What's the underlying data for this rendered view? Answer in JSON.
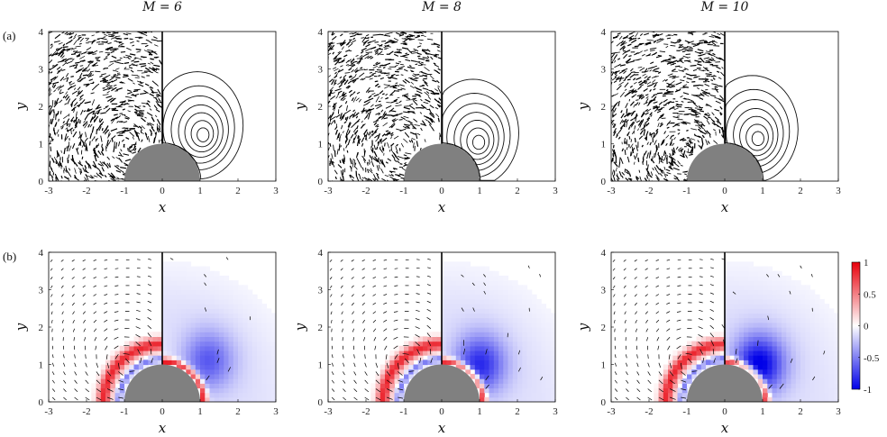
{
  "chart_data": [
    {
      "type": "streamline-contour",
      "panel_label": "(a)",
      "title": "M = 6",
      "xlabel": "x",
      "ylabel": "y",
      "xlim": [
        -3,
        3
      ],
      "ylim": [
        0,
        4
      ],
      "x_ticks": [
        "-3",
        "-2",
        "-1",
        "0",
        "1",
        "2",
        "3"
      ],
      "y_ticks": [
        "0",
        "1",
        "2",
        "3",
        "4"
      ],
      "obstacle": {
        "shape": "half-disk",
        "center": [
          0,
          0
        ],
        "radius": 1,
        "color": "#808080"
      },
      "vortex_center_left": [
        -0.9,
        1.0
      ],
      "vortex_center_right": [
        1.1,
        1.2
      ]
    },
    {
      "type": "streamline-contour",
      "panel_label": "",
      "title": "M = 8",
      "xlabel": "x",
      "ylabel": "y",
      "xlim": [
        -3,
        3
      ],
      "ylim": [
        0,
        4
      ],
      "x_ticks": [
        "-3",
        "-2",
        "-1",
        "0",
        "1",
        "2",
        "3"
      ],
      "y_ticks": [
        "0",
        "1",
        "2",
        "3",
        "4"
      ],
      "obstacle": {
        "shape": "half-disk",
        "center": [
          0,
          0
        ],
        "radius": 1,
        "color": "#808080"
      },
      "vortex_center_left": [
        -1.0,
        0.9
      ],
      "vortex_center_right": [
        1.0,
        1.0
      ]
    },
    {
      "type": "streamline-contour",
      "panel_label": "",
      "title": "M = 10",
      "xlabel": "x",
      "ylabel": "y",
      "xlim": [
        -3,
        3
      ],
      "ylim": [
        0,
        4
      ],
      "x_ticks": [
        "-3",
        "-2",
        "-1",
        "0",
        "1",
        "2",
        "3"
      ],
      "y_ticks": [
        "0",
        "1",
        "2",
        "3",
        "4"
      ],
      "obstacle": {
        "shape": "half-disk",
        "center": [
          0,
          0
        ],
        "radius": 1,
        "color": "#808080"
      },
      "vortex_center_left": [
        -1.0,
        0.8
      ],
      "vortex_center_right": [
        0.9,
        1.1
      ]
    },
    {
      "type": "heatmap-quiver",
      "panel_label": "(b)",
      "title": "",
      "xlabel": "x",
      "ylabel": "y",
      "xlim": [
        -3,
        3
      ],
      "ylim": [
        0,
        4
      ],
      "x_ticks": [
        "-3",
        "-2",
        "-1",
        "0",
        "1",
        "2",
        "3"
      ],
      "y_ticks": [
        "0",
        "1",
        "2",
        "3",
        "4"
      ],
      "obstacle": {
        "shape": "half-disk",
        "center": [
          0,
          0
        ],
        "radius": 1,
        "color": "#808080"
      },
      "vortex_center_right": [
        1.2,
        1.1
      ],
      "vortex_strength": 0.55
    },
    {
      "type": "heatmap-quiver",
      "panel_label": "",
      "title": "",
      "xlabel": "x",
      "ylabel": "y",
      "xlim": [
        -3,
        3
      ],
      "ylim": [
        0,
        4
      ],
      "x_ticks": [
        "-3",
        "-2",
        "-1",
        "0",
        "1",
        "2",
        "3"
      ],
      "y_ticks": [
        "0",
        "1",
        "2",
        "3",
        "4"
      ],
      "obstacle": {
        "shape": "half-disk",
        "center": [
          0,
          0
        ],
        "radius": 1,
        "color": "#808080"
      },
      "vortex_center_right": [
        1.0,
        1.0
      ],
      "vortex_strength": 0.75
    },
    {
      "type": "heatmap-quiver",
      "panel_label": "",
      "title": "",
      "xlabel": "x",
      "ylabel": "y",
      "xlim": [
        -3,
        3
      ],
      "ylim": [
        0,
        4
      ],
      "x_ticks": [
        "-3",
        "-2",
        "-1",
        "0",
        "1",
        "2",
        "3"
      ],
      "y_ticks": [
        "0",
        "1",
        "2",
        "3",
        "4"
      ],
      "obstacle": {
        "shape": "half-disk",
        "center": [
          0,
          0
        ],
        "radius": 1,
        "color": "#808080"
      },
      "vortex_center_right": [
        0.9,
        1.0
      ],
      "vortex_strength": 0.95
    }
  ],
  "colorbar": {
    "range": [
      -1,
      1
    ],
    "ticks": [
      "1",
      "0.5",
      "0",
      "-0.5",
      "-1"
    ],
    "colors": {
      "high": "#e8000b",
      "mid": "#ffffff",
      "low": "#0000e8"
    }
  }
}
